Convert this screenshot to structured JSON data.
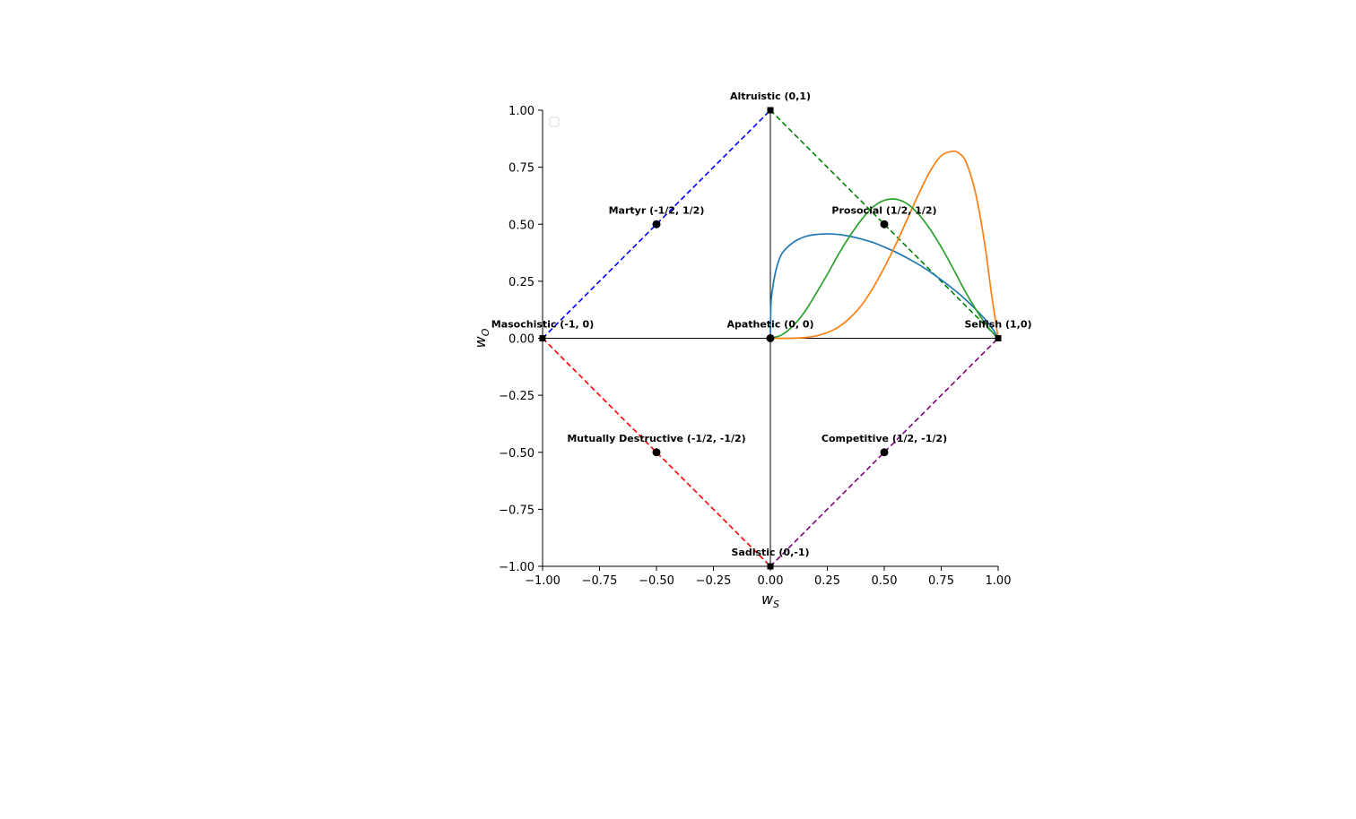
{
  "chart_data": {
    "type": "line",
    "title": "",
    "xlabel": "w",
    "xlabel_sub": "S",
    "ylabel": "w",
    "ylabel_sub": "O",
    "xlim": [
      -1,
      1
    ],
    "ylim": [
      -1,
      1
    ],
    "xticks": [
      -1.0,
      -0.75,
      -0.5,
      -0.25,
      0.0,
      0.25,
      0.5,
      0.75,
      1.0
    ],
    "yticks": [
      -1.0,
      -0.75,
      -0.5,
      -0.25,
      0.0,
      0.25,
      0.5,
      0.75,
      1.0
    ],
    "xtick_labels": [
      "−1.00",
      "−0.75",
      "−0.50",
      "−0.25",
      "0.00",
      "0.25",
      "0.50",
      "0.75",
      "1.00"
    ],
    "ytick_labels": [
      "−1.00",
      "−0.75",
      "−0.50",
      "−0.25",
      "0.00",
      "0.25",
      "0.50",
      "0.75",
      "1.00"
    ],
    "grid": false,
    "legend": "upper-left (empty)",
    "axis_lines": [
      {
        "from": [
          0,
          -1
        ],
        "to": [
          0,
          1
        ],
        "color": "#000000"
      },
      {
        "from": [
          -1,
          0
        ],
        "to": [
          1,
          0
        ],
        "color": "#000000"
      }
    ],
    "diamond_edges": [
      {
        "from": [
          -1,
          0
        ],
        "to": [
          0,
          1
        ],
        "color": "#0000ff"
      },
      {
        "from": [
          0,
          1
        ],
        "to": [
          1,
          0
        ],
        "color": "#008000"
      },
      {
        "from": [
          -1,
          0
        ],
        "to": [
          0,
          -1
        ],
        "color": "#ff0000"
      },
      {
        "from": [
          0,
          -1
        ],
        "to": [
          1,
          0
        ],
        "color": "#800080"
      }
    ],
    "points": [
      {
        "label": "Altruistic (0,1)",
        "x": 0,
        "y": 1,
        "marker": "square"
      },
      {
        "label": "Martyr (-1/2, 1/2)",
        "x": -0.5,
        "y": 0.5,
        "marker": "circle"
      },
      {
        "label": "Prosocial (1/2, 1/2)",
        "x": 0.5,
        "y": 0.5,
        "marker": "circle"
      },
      {
        "label": "Masochistic (-1, 0)",
        "x": -1,
        "y": 0,
        "marker": "square"
      },
      {
        "label": "Apathetic (0, 0)",
        "x": 0,
        "y": 0,
        "marker": "circle"
      },
      {
        "label": "Selfish (1,0)",
        "x": 1,
        "y": 0,
        "marker": "square"
      },
      {
        "label": "Mutually Destructive (-1/2, -1/2)",
        "x": -0.5,
        "y": -0.5,
        "marker": "circle"
      },
      {
        "label": "Competitive (1/2, -1/2)",
        "x": 0.5,
        "y": -0.5,
        "marker": "circle"
      },
      {
        "label": "Sadistic (0,-1)",
        "x": 0,
        "y": -1,
        "marker": "square"
      }
    ],
    "series": [
      {
        "color": "#1f77b4",
        "x": [
          0,
          0.0025,
          0.01,
          0.025,
          0.05,
          0.1,
          0.15,
          0.2,
          0.25,
          0.3,
          0.35,
          0.4,
          0.45,
          0.5,
          0.55,
          0.6,
          0.65,
          0.7,
          0.75,
          0.8,
          0.85,
          0.9,
          0.95,
          0.98,
          1.0
        ],
        "y": [
          0,
          0.15,
          0.22,
          0.3,
          0.37,
          0.42,
          0.445,
          0.455,
          0.458,
          0.455,
          0.447,
          0.435,
          0.42,
          0.4,
          0.378,
          0.352,
          0.324,
          0.292,
          0.256,
          0.218,
          0.176,
          0.128,
          0.075,
          0.035,
          0
        ]
      },
      {
        "color": "#ff7f0e",
        "x": [
          0,
          0.05,
          0.1,
          0.15,
          0.2,
          0.25,
          0.3,
          0.35,
          0.4,
          0.45,
          0.5,
          0.55,
          0.6,
          0.65,
          0.7,
          0.75,
          0.8,
          0.83,
          0.86,
          0.9,
          0.94,
          0.97,
          1.0
        ],
        "y": [
          0,
          0.0,
          0.0005,
          0.003,
          0.01,
          0.025,
          0.05,
          0.09,
          0.145,
          0.22,
          0.31,
          0.41,
          0.52,
          0.63,
          0.73,
          0.8,
          0.82,
          0.81,
          0.77,
          0.64,
          0.42,
          0.2,
          0
        ]
      },
      {
        "color": "#2ca02c",
        "x": [
          0,
          0.05,
          0.1,
          0.15,
          0.2,
          0.25,
          0.3,
          0.35,
          0.4,
          0.45,
          0.5,
          0.55,
          0.6,
          0.65,
          0.7,
          0.75,
          0.8,
          0.85,
          0.9,
          0.95,
          1.0
        ],
        "y": [
          0,
          0.015,
          0.055,
          0.115,
          0.195,
          0.28,
          0.37,
          0.45,
          0.52,
          0.575,
          0.605,
          0.61,
          0.59,
          0.545,
          0.48,
          0.4,
          0.31,
          0.215,
          0.13,
          0.055,
          0
        ]
      }
    ]
  }
}
